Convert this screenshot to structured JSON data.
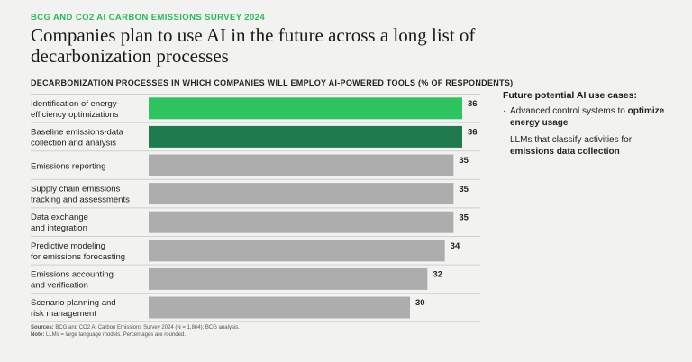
{
  "kicker": "BCG AND CO2 AI CARBON EMISSIONS SURVEY 2024",
  "title": "Companies plan to use AI in the future across a long list of decarbonization processes",
  "colors": {
    "accent": "#2ec35f",
    "dark_green": "#1f7a4d",
    "gray_bar": "#adadad",
    "kicker": "#2eb85c"
  },
  "chart_data": {
    "type": "bar",
    "orientation": "horizontal",
    "title": "DECARBONIZATION PROCESSES IN WHICH COMPANIES WILL EMPLOY AI-POWERED TOOLS (% OF RESPONDENTS)",
    "categories": [
      [
        "Identification of energy-",
        "efficiency optimizations"
      ],
      [
        "Baseline emissions-data",
        "collection and analysis"
      ],
      [
        "Emissions reporting"
      ],
      [
        "Supply chain emissions",
        "tracking and assessments"
      ],
      [
        "Data exchange",
        "and integration"
      ],
      [
        "Predictive modeling",
        "for emissions forecasting"
      ],
      [
        "Emissions accounting",
        "and verification"
      ],
      [
        "Scenario planning and",
        "risk management"
      ]
    ],
    "values": [
      36,
      36,
      35,
      35,
      35,
      34,
      32,
      30
    ],
    "bar_colors": [
      "#2ec35f",
      "#1f7a4d",
      "#adadad",
      "#adadad",
      "#adadad",
      "#adadad",
      "#adadad",
      "#adadad"
    ],
    "xlim": [
      0,
      36
    ],
    "grid": false,
    "legend": "none"
  },
  "side": {
    "heading": "Future potential AI use cases:",
    "items": [
      {
        "bullet": "·",
        "text": "Advanced control systems to ",
        "bold": "optimize energy usage"
      },
      {
        "bullet": "·",
        "text": "LLMs that classify activities for ",
        "bold": "emissions data collection"
      }
    ]
  },
  "footer": {
    "sources_label": "Sources:",
    "sources_text": " BCG and CO2 AI Carbon Emissions Survey 2024 (N = 1,864); BCG analysis.",
    "note_label": "Note:",
    "note_text": " LLMs = large language models. Percentages are rounded."
  }
}
